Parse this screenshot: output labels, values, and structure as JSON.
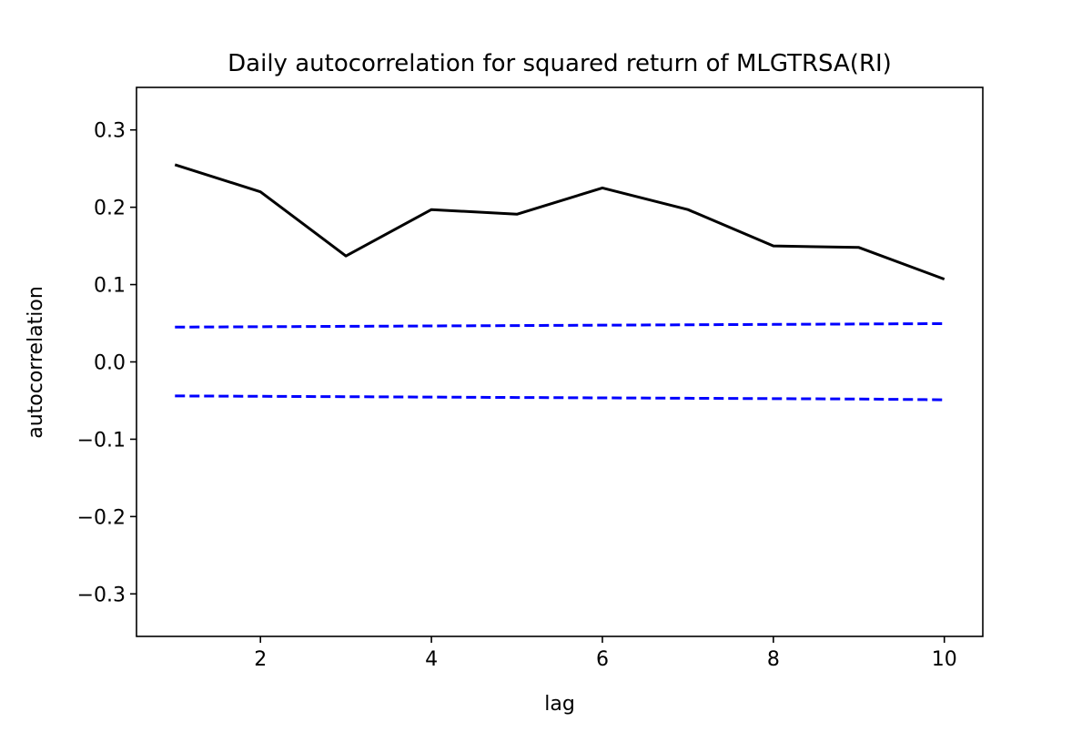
{
  "chart_data": {
    "type": "line",
    "title": "Daily autocorrelation for squared return of MLGTRSA(RI)",
    "xlabel": "lag",
    "ylabel": "autocorrelation",
    "xlim": [
      0.55,
      10.45
    ],
    "ylim": [
      -0.355,
      0.355
    ],
    "x_ticks": [
      2,
      4,
      6,
      8,
      10
    ],
    "x_tick_labels": [
      "2",
      "4",
      "6",
      "8",
      "10"
    ],
    "y_ticks": [
      0.3,
      0.2,
      0.1,
      0.0,
      -0.1,
      -0.2,
      -0.3
    ],
    "y_tick_labels": [
      "0.3",
      "0.2",
      "0.1",
      "0.0",
      "−0.1",
      "−0.2",
      "−0.3"
    ],
    "grid": false,
    "x": [
      1,
      2,
      3,
      4,
      5,
      6,
      7,
      8,
      9,
      10
    ],
    "series": [
      {
        "color": "#000000",
        "style": "solid",
        "values": [
          0.255,
          0.22,
          0.137,
          0.197,
          0.191,
          0.225,
          0.197,
          0.15,
          0.148,
          0.107
        ]
      },
      {
        "color": "#0000ff",
        "style": "dashed",
        "values": [
          0.045,
          0.0455,
          0.046,
          0.0465,
          0.047,
          0.0475,
          0.048,
          0.0485,
          0.049,
          0.0495
        ]
      },
      {
        "color": "#0000ff",
        "style": "dashed",
        "values": [
          -0.044,
          -0.0445,
          -0.045,
          -0.0455,
          -0.046,
          -0.0465,
          -0.047,
          -0.0475,
          -0.048,
          -0.049
        ]
      }
    ]
  }
}
